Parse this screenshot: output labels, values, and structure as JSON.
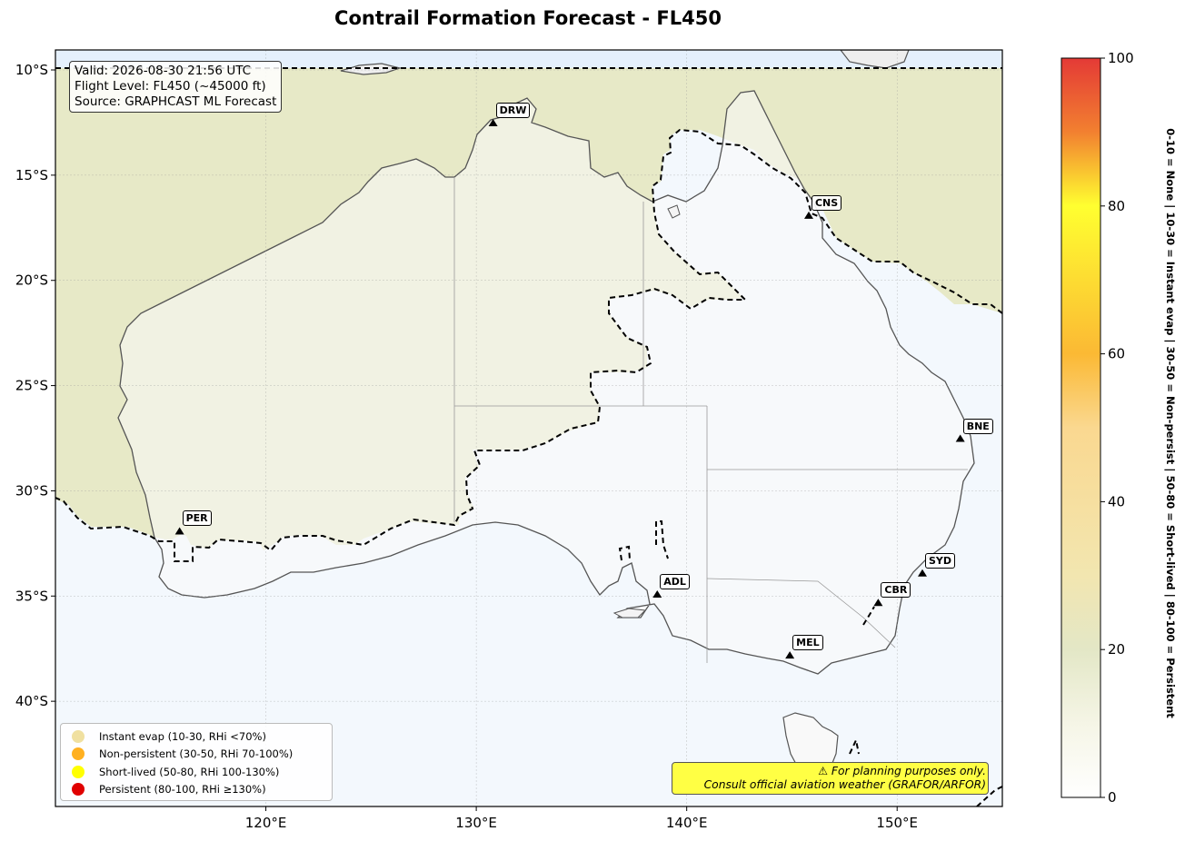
{
  "title": "Contrail Formation Forecast - FL450",
  "info": {
    "valid": "Valid: 2026-08-30 21:56 UTC",
    "flight_level": "Flight Level: FL450 (~45000 ft)",
    "source": "Source: GRAPHCAST ML Forecast"
  },
  "map": {
    "x_ticks": [
      "120°E",
      "130°E",
      "140°E",
      "150°E"
    ],
    "y_ticks": [
      "10°S",
      "15°S",
      "20°S",
      "25°S",
      "30°S",
      "35°S",
      "40°S"
    ],
    "cities": [
      {
        "code": "DRW",
        "lon": 130.8,
        "lat": -12.5
      },
      {
        "code": "CNS",
        "lon": 145.8,
        "lat": -16.9
      },
      {
        "code": "BNE",
        "lon": 153.0,
        "lat": -27.5
      },
      {
        "code": "PER",
        "lon": 115.9,
        "lat": -31.9
      },
      {
        "code": "SYD",
        "lon": 151.2,
        "lat": -33.9
      },
      {
        "code": "ADL",
        "lon": 138.6,
        "lat": -34.9
      },
      {
        "code": "CBR",
        "lon": 149.1,
        "lat": -35.3
      },
      {
        "code": "MEL",
        "lon": 144.9,
        "lat": -37.8
      }
    ]
  },
  "legend": {
    "items": [
      {
        "label": "Instant evap (10-30, RHi <70%)",
        "color": "#f0e0a0"
      },
      {
        "label": "Non-persistent (30-50, RHi 70-100%)",
        "color": "#ffb020"
      },
      {
        "label": "Short-lived (50-80, RHi 100-130%)",
        "color": "#ffff00"
      },
      {
        "label": "Persistent (80-100, RHi ≥130%)",
        "color": "#e00000"
      }
    ]
  },
  "disclaimer": {
    "line1": "⚠ For planning purposes only.",
    "line2": "Consult official aviation weather (GRAFOR/ARFOR)"
  },
  "colorbar": {
    "ticks": [
      "0",
      "20",
      "40",
      "60",
      "80",
      "100"
    ],
    "label": "0-10 = None  |  10-30 = Instant evap  |  30-50 = Non-persist  |  50-80 = Short-lived  |  80-100 = Persistent"
  },
  "colors": {
    "land": "#f9f9f9",
    "ocean": "#f3f8fd",
    "north_shading": "#e6e8c4",
    "contour": "#000000"
  }
}
